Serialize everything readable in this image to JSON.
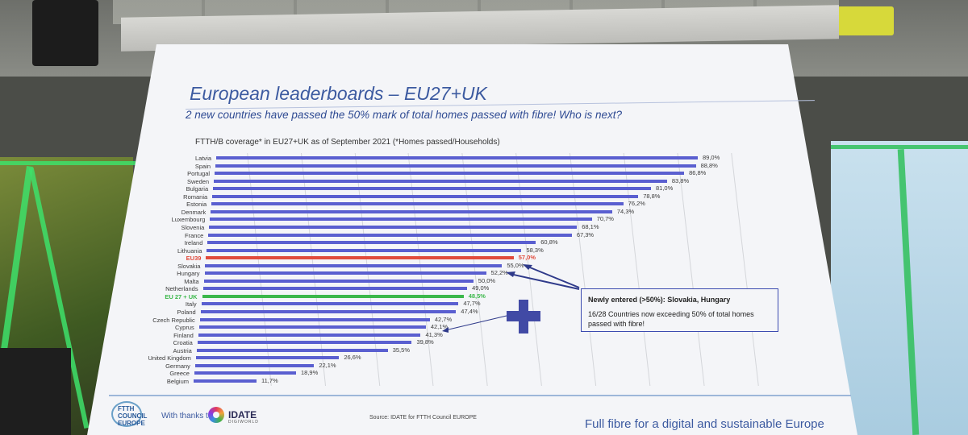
{
  "slide": {
    "title": "European leaderboards – EU27+UK",
    "subtitle": "2 new countries have passed the 50% mark of total homes passed with fibre! Who is next?",
    "caption": "FTTH/B coverage* in EU27+UK as of September 2021 (*Homes passed/Households)",
    "callout_heading": "Newly entered (>50%): Slovakia, Hungary",
    "callout_body": "16/28 Countries now exceeding 50% of total homes passed with fibre!",
    "thanks": "With thanks to",
    "ftth_logo": "FTTH COUNCIL EUROPE",
    "idate_name": "IDATE",
    "idate_tagline": "DIGIWORLD",
    "source": "Source: IDATE for FTTH Council EUROPE",
    "tagline": "Full fibre for a digital and sustainable Europe"
  },
  "chart_data": {
    "type": "bar",
    "orientation": "horizontal",
    "categories": [
      "Latvia",
      "Spain",
      "Portugal",
      "Sweden",
      "Bulgaria",
      "Romania",
      "Estonia",
      "Denmark",
      "Luxembourg",
      "Slovenia",
      "France",
      "Ireland",
      "Lithuania",
      "EU39",
      "Slovakia",
      "Hungary",
      "Malta",
      "Netherlands",
      "EU 27 + UK",
      "Italy",
      "Poland",
      "Czech Republic",
      "Cyprus",
      "Finland",
      "Croatia",
      "Austria",
      "United Kingdom",
      "Germany",
      "Greece",
      "Belgium"
    ],
    "values": [
      89.0,
      88.8,
      86.8,
      83.8,
      81.0,
      78.8,
      76.2,
      74.3,
      70.7,
      68.1,
      67.3,
      60.8,
      58.3,
      57.0,
      55.0,
      52.2,
      50.0,
      49.0,
      48.5,
      47.7,
      47.4,
      42.7,
      42.1,
      41.3,
      39.8,
      35.5,
      26.6,
      22.1,
      18.9,
      11.7
    ],
    "value_labels": [
      "89,0%",
      "88,8%",
      "86,8%",
      "83,8%",
      "81,0%",
      "78,8%",
      "76,2%",
      "74,3%",
      "70,7%",
      "68,1%",
      "67,3%",
      "60,8%",
      "58,3%",
      "57,0%",
      "55,0%",
      "52,2%",
      "50,0%",
      "49,0%",
      "48,5%",
      "47,7%",
      "47,4%",
      "42,7%",
      "42,1%",
      "41,3%",
      "39,8%",
      "35,5%",
      "26,6%",
      "22,1%",
      "18,9%",
      "11,7%"
    ],
    "highlight": {
      "EU39": "#e14b3c",
      "EU 27 + UK": "#3cb84b"
    },
    "bar_color": "#5a5fd0",
    "xlim": [
      0,
      100
    ],
    "grid": true
  }
}
